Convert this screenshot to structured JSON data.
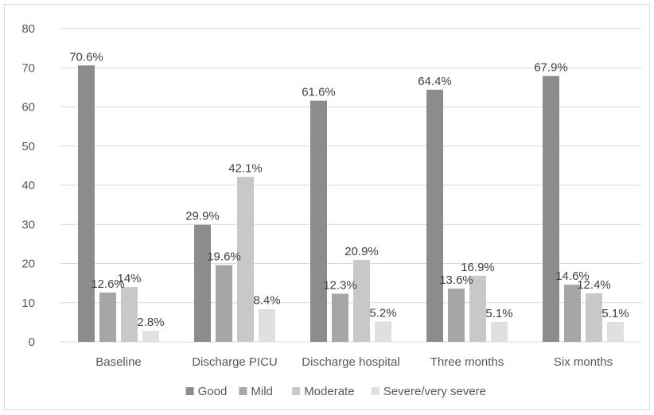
{
  "chart_data": {
    "type": "bar",
    "title": "",
    "xlabel": "",
    "ylabel": "",
    "ylim": [
      0,
      80
    ],
    "yticks": [
      0,
      10,
      20,
      30,
      40,
      50,
      60,
      70,
      80
    ],
    "grid": true,
    "legend_position": "bottom",
    "categories": [
      "Baseline",
      "Discharge PICU",
      "Discharge hospital",
      "Three months",
      "Six months"
    ],
    "series": [
      {
        "name": "Good",
        "color": "#8c8c8c",
        "values": [
          70.6,
          29.9,
          61.6,
          64.4,
          67.9
        ],
        "labels": [
          "70.6%",
          "29.9%",
          "61.6%",
          "64.4%",
          "67.9%"
        ]
      },
      {
        "name": "Mild",
        "color": "#a6a6a6",
        "values": [
          12.6,
          19.6,
          12.3,
          13.6,
          14.6
        ],
        "labels": [
          "12.6%",
          "19.6%",
          "12.3%",
          "13.6%",
          "14.6%"
        ]
      },
      {
        "name": "Moderate",
        "color": "#c8c8c8",
        "values": [
          14,
          42.1,
          20.9,
          16.9,
          12.4
        ],
        "labels": [
          "14%",
          "42.1%",
          "20.9%",
          "16.9%",
          "12.4%"
        ]
      },
      {
        "name": "Severe/very severe",
        "color": "#e0e0e0",
        "values": [
          2.8,
          8.4,
          5.2,
          5.1,
          5.1
        ],
        "labels": [
          "2.8%",
          "8.4%",
          "5.2%",
          "5.1%",
          "5.1%"
        ]
      }
    ]
  }
}
